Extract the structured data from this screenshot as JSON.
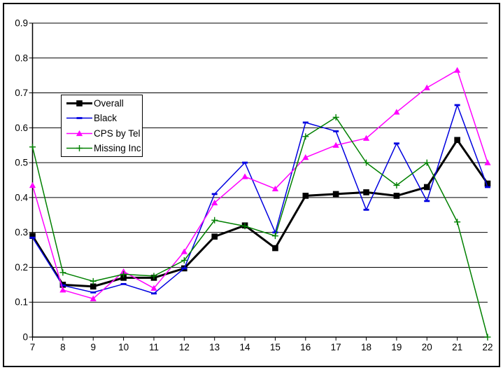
{
  "frame": {
    "outer_border_color": "#FF00FF",
    "inner_border_color": "#000000",
    "background": "#FFFFFF"
  },
  "chart_data": {
    "type": "line",
    "x": [
      7,
      8,
      9,
      10,
      11,
      12,
      13,
      14,
      15,
      16,
      17,
      18,
      19,
      20,
      21,
      22
    ],
    "x_tick_labels": [
      "7",
      "8",
      "9",
      "10",
      "11",
      "12",
      "13",
      "14",
      "15",
      "16",
      "17",
      "18",
      "19",
      "20",
      "21",
      "22"
    ],
    "y_tick_labels": [
      "0",
      "0.1",
      "0.2",
      "0.3",
      "0.4",
      "0.5",
      "0.6",
      "0.7",
      "0.8",
      "0.9"
    ],
    "ylim": [
      0,
      0.9
    ],
    "grid": true,
    "legend_position": "upper-left-inside",
    "series": [
      {
        "name": "Overall",
        "color": "#000000",
        "marker": "square",
        "line_width": 3,
        "values": [
          0.29,
          0.15,
          0.145,
          0.17,
          0.17,
          0.197,
          0.288,
          0.32,
          0.255,
          0.405,
          0.41,
          0.415,
          0.405,
          0.43,
          0.565,
          0.44
        ]
      },
      {
        "name": "Black",
        "color": "#0000E0",
        "marker": "dash",
        "line_width": 1.5,
        "values": [
          0.285,
          0.148,
          0.128,
          0.152,
          0.125,
          0.197,
          0.41,
          0.5,
          0.3,
          0.615,
          0.59,
          0.365,
          0.555,
          0.39,
          0.665,
          0.43
        ]
      },
      {
        "name": "CPS by Tel",
        "color": "#FF00FF",
        "marker": "triangle",
        "line_width": 1.5,
        "values": [
          0.435,
          0.135,
          0.11,
          0.188,
          0.14,
          0.245,
          0.385,
          0.46,
          0.425,
          0.515,
          0.55,
          0.57,
          0.645,
          0.715,
          0.765,
          0.5
        ]
      },
      {
        "name": "Missing Inc",
        "color": "#008000",
        "marker": "plus",
        "line_width": 1.5,
        "values": [
          0.545,
          0.185,
          0.16,
          0.18,
          0.175,
          0.22,
          0.335,
          0.318,
          0.29,
          0.575,
          0.63,
          0.5,
          0.435,
          0.5,
          0.33,
          0.0
        ]
      }
    ]
  }
}
